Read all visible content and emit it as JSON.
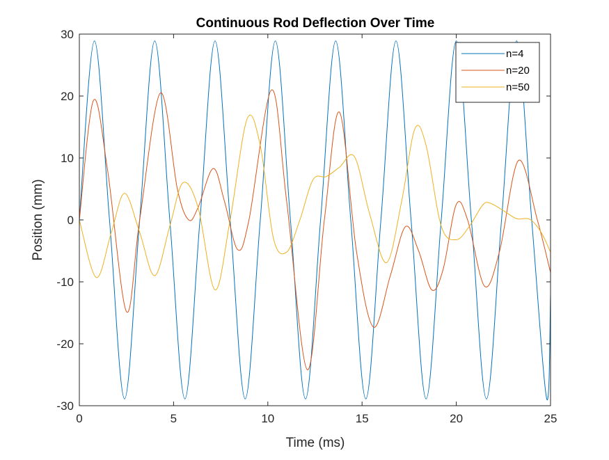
{
  "chart_data": {
    "type": "line",
    "title": "Continuous Rod Deflection Over Time",
    "xlabel": "Time (ms)",
    "ylabel": "Position (mm)",
    "xlim": [
      0,
      25
    ],
    "ylim": [
      -30,
      30
    ],
    "xticks": [
      0,
      5,
      10,
      15,
      20,
      25
    ],
    "yticks": [
      -30,
      -20,
      -10,
      0,
      10,
      20,
      30
    ],
    "xtick_labels": [
      "0",
      "5",
      "10",
      "15",
      "20",
      "25"
    ],
    "ytick_labels": [
      "-30",
      "-20",
      "-10",
      "0",
      "10",
      "20",
      "30"
    ],
    "grid": false,
    "legend_position": "top-right",
    "series": [
      {
        "name": "n=4",
        "color": "#0072BD",
        "x": [
          0,
          0.8,
          1.6,
          2.4,
          3.2,
          4.0,
          4.8,
          5.6,
          6.4,
          7.2,
          8.0,
          8.8,
          9.6,
          10.4,
          11.2,
          12.0,
          12.8,
          13.6,
          14.4,
          15.2,
          16.0,
          16.8,
          17.6,
          18.4,
          19.2,
          20.0,
          20.8,
          21.6,
          22.4,
          23.2,
          24.0,
          24.8,
          25.0
        ],
        "y": [
          0,
          28.9,
          0,
          -28.9,
          0,
          28.9,
          0,
          -28.9,
          0,
          28.9,
          0,
          -28.9,
          0,
          28.9,
          0,
          -28.9,
          0,
          28.9,
          0,
          -28.9,
          0,
          28.9,
          0,
          -28.9,
          0,
          28.9,
          0,
          -28.9,
          0,
          28.9,
          0,
          -28.9,
          -12
        ]
      },
      {
        "name": "n=20",
        "color": "#D95319",
        "x": [
          0,
          0.75,
          1.5,
          2.5,
          3.2,
          4.3,
          5.2,
          5.8,
          6.3,
          7.1,
          7.7,
          8.4,
          9.0,
          10.2,
          11.0,
          12.1,
          13.0,
          13.8,
          14.7,
          15.6,
          16.5,
          17.3,
          18.0,
          18.7,
          19.3,
          20.0,
          20.6,
          21.5,
          22.3,
          23.3,
          24.3,
          25.0
        ],
        "y": [
          0,
          19.3,
          8,
          -14.8,
          0,
          20.5,
          5,
          0,
          2,
          8.3,
          3,
          -4.8,
          0,
          21.0,
          3,
          -24.2,
          0,
          17.4,
          -5,
          -17.3,
          -9,
          -1.1,
          -5,
          -11.3,
          -8,
          2.5,
          0,
          -10.7,
          -5,
          9.6,
          0,
          -8.5
        ]
      },
      {
        "name": "n=50",
        "color": "#EDB120",
        "x": [
          0,
          0.9,
          1.7,
          2.4,
          3.2,
          4.0,
          4.8,
          5.5,
          6.3,
          7.2,
          8.0,
          8.9,
          9.6,
          10.3,
          11.0,
          11.7,
          12.4,
          13.1,
          13.8,
          14.6,
          15.4,
          16.3,
          17.1,
          17.8,
          18.4,
          19.2,
          20.0,
          20.7,
          21.4,
          21.8,
          22.5,
          23.2,
          23.9,
          24.5,
          25.0
        ],
        "y": [
          0,
          -9.3,
          -2,
          4.3,
          -2,
          -9.0,
          -1,
          6.0,
          2,
          -11.3,
          0,
          16.3,
          12,
          -3,
          -5.2,
          0,
          6.5,
          7,
          8.5,
          10.2,
          1,
          -6.9,
          3,
          14.7,
          12,
          -1,
          -3.2,
          -1,
          2.4,
          2.7,
          1.5,
          0.2,
          0.1,
          -2,
          -5.2
        ]
      }
    ]
  }
}
